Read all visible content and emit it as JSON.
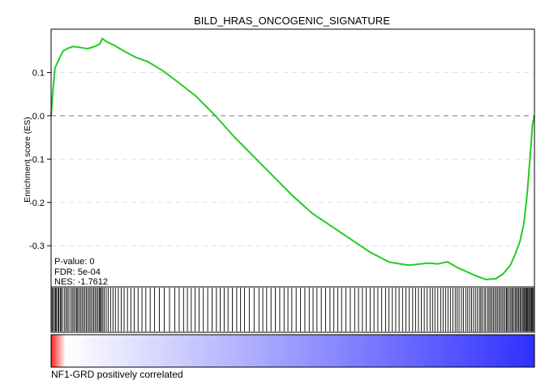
{
  "chart_data": {
    "type": "line",
    "title": "BILD_HRAS_ONCOGENIC_SIGNATURE",
    "ylabel": "Enrichment score (ES)",
    "xlabel": "",
    "ylim": [
      -0.395,
      0.2
    ],
    "xlim": [
      0,
      1
    ],
    "y_ticks": [
      {
        "value": 0.1,
        "label": "0.1"
      },
      {
        "value": 0.0,
        "label": "0.0"
      },
      {
        "value": -0.1,
        "label": "-0.1"
      },
      {
        "value": -0.2,
        "label": "-0.2"
      },
      {
        "value": -0.3,
        "label": "-0.3"
      }
    ],
    "grid": {
      "horizontal_dashed": [
        0.1,
        -0.1,
        -0.2,
        -0.3
      ],
      "zero_line": 0.0
    },
    "series": [
      {
        "color": "#22cc22",
        "x": [
          0.0,
          0.004,
          0.008,
          0.016,
          0.025,
          0.035,
          0.045,
          0.06,
          0.075,
          0.09,
          0.1,
          0.106,
          0.115,
          0.13,
          0.15,
          0.175,
          0.2,
          0.23,
          0.26,
          0.3,
          0.34,
          0.38,
          0.42,
          0.46,
          0.5,
          0.54,
          0.58,
          0.62,
          0.66,
          0.7,
          0.74,
          0.78,
          0.8,
          0.82,
          0.84,
          0.86,
          0.88,
          0.9,
          0.92,
          0.935,
          0.95,
          0.96,
          0.97,
          0.978,
          0.985,
          0.992,
          0.996,
          1.0
        ],
        "y": [
          0.0,
          0.06,
          0.11,
          0.13,
          0.15,
          0.156,
          0.16,
          0.158,
          0.155,
          0.16,
          0.165,
          0.178,
          0.171,
          0.163,
          0.15,
          0.135,
          0.125,
          0.105,
          0.08,
          0.045,
          0.0,
          -0.05,
          -0.095,
          -0.14,
          -0.185,
          -0.225,
          -0.255,
          -0.285,
          -0.315,
          -0.338,
          -0.345,
          -0.34,
          -0.342,
          -0.337,
          -0.35,
          -0.36,
          -0.37,
          -0.378,
          -0.376,
          -0.365,
          -0.345,
          -0.32,
          -0.29,
          -0.25,
          -0.18,
          -0.08,
          -0.02,
          0.0
        ]
      }
    ],
    "stats": {
      "pvalue": "P-value: 0",
      "fdr": "FDR: 5e-04",
      "nes": "NES: -1.7612"
    },
    "hits": [
      0.002,
      0.004,
      0.007,
      0.009,
      0.011,
      0.014,
      0.016,
      0.019,
      0.021,
      0.024,
      0.028,
      0.031,
      0.034,
      0.037,
      0.041,
      0.044,
      0.047,
      0.05,
      0.053,
      0.055,
      0.058,
      0.061,
      0.064,
      0.067,
      0.07,
      0.073,
      0.076,
      0.079,
      0.082,
      0.085,
      0.088,
      0.091,
      0.094,
      0.097,
      0.1,
      0.102,
      0.104,
      0.107,
      0.11,
      0.114,
      0.118,
      0.123,
      0.128,
      0.133,
      0.139,
      0.145,
      0.151,
      0.158,
      0.165,
      0.172,
      0.18,
      0.188,
      0.196,
      0.205,
      0.214,
      0.224,
      0.234,
      0.245,
      0.256,
      0.265,
      0.274,
      0.282,
      0.29,
      0.298,
      0.306,
      0.315,
      0.324,
      0.333,
      0.342,
      0.35,
      0.358,
      0.366,
      0.375,
      0.384,
      0.392,
      0.4,
      0.41,
      0.42,
      0.43,
      0.438,
      0.446,
      0.455,
      0.464,
      0.473,
      0.482,
      0.49,
      0.498,
      0.507,
      0.516,
      0.525,
      0.534,
      0.542,
      0.55,
      0.559,
      0.568,
      0.577,
      0.585,
      0.593,
      0.601,
      0.61,
      0.619,
      0.628,
      0.636,
      0.644,
      0.652,
      0.66,
      0.668,
      0.676,
      0.684,
      0.692,
      0.699,
      0.706,
      0.713,
      0.72,
      0.727,
      0.734,
      0.741,
      0.748,
      0.754,
      0.76,
      0.766,
      0.772,
      0.778,
      0.784,
      0.789,
      0.794,
      0.8,
      0.806,
      0.811,
      0.816,
      0.821,
      0.826,
      0.831,
      0.836,
      0.84,
      0.844,
      0.849,
      0.853,
      0.858,
      0.862,
      0.866,
      0.87,
      0.874,
      0.878,
      0.882,
      0.886,
      0.889,
      0.892,
      0.896,
      0.899,
      0.903,
      0.906,
      0.909,
      0.912,
      0.915,
      0.918,
      0.921,
      0.924,
      0.927,
      0.93,
      0.933,
      0.936,
      0.939,
      0.942,
      0.944,
      0.947,
      0.95,
      0.953,
      0.955,
      0.958,
      0.961,
      0.963,
      0.966,
      0.968,
      0.971,
      0.973,
      0.976,
      0.978,
      0.98,
      0.982,
      0.984,
      0.986,
      0.988,
      0.99,
      0.992,
      0.994,
      0.996,
      0.998
    ],
    "rank_gradient": {
      "from": "#ff2020",
      "via": "#ffffff",
      "to": "#3030ff",
      "white_stop": 0.03
    },
    "bottom_label": "NF1-GRD positively correlated"
  }
}
